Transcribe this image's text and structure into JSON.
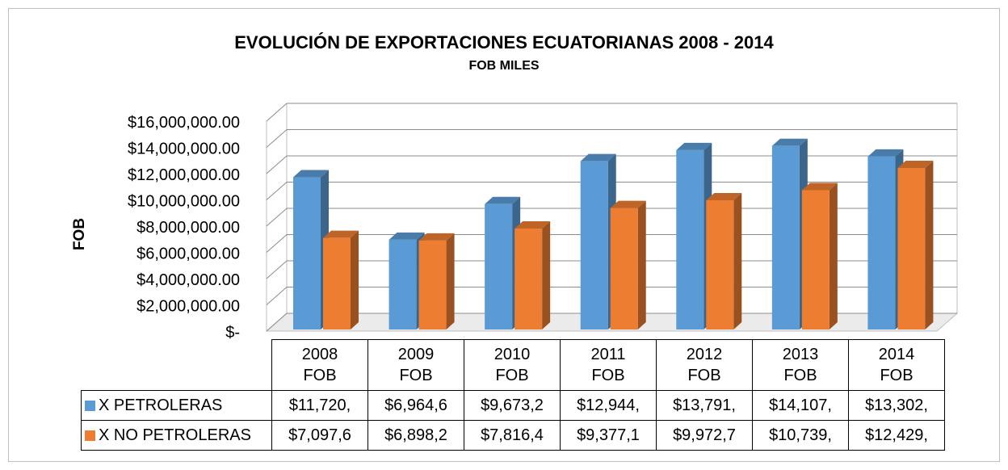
{
  "chart_data": {
    "type": "bar3d",
    "title": "EVOLUCIÓN DE EXPORTACIONES ECUATORIANAS 2008 - 2014",
    "subtitle": "FOB MILES",
    "y_label": "FOB",
    "categories": [
      "2008\nFOB",
      "2009\nFOB",
      "2010\nFOB",
      "2011\nFOB",
      "2012\nFOB",
      "2013\nFOB",
      "2014\nFOB"
    ],
    "series": [
      {
        "name": "X PETROLERAS",
        "color": "#5b9bd5",
        "values": [
          11720000,
          6964600,
          9673200,
          12944000,
          13791000,
          14107000,
          13302000
        ],
        "value_labels": [
          "$11,720,",
          "$6,964,6",
          "$9,673,2",
          "$12,944,",
          "$13,791,",
          "$14,107,",
          "$13,302,"
        ]
      },
      {
        "name": "X NO PETROLERAS",
        "color": "#ed7d31",
        "values": [
          7097600,
          6898200,
          7816400,
          9377100,
          9972700,
          10739000,
          12429000
        ],
        "value_labels": [
          "$7,097,6",
          "$6,898,2",
          "$7,816,4",
          "$9,377,1",
          "$9,972,7",
          "$10,739,",
          "$12,429,"
        ]
      }
    ],
    "ylim": [
      0,
      16000000
    ],
    "yticks": [
      {
        "value": 0,
        "label": "$-"
      },
      {
        "value": 2000000,
        "label": "$2,000,000.00"
      },
      {
        "value": 4000000,
        "label": "$4,000,000.00"
      },
      {
        "value": 6000000,
        "label": "$6,000,000.00"
      },
      {
        "value": 8000000,
        "label": "$8,000,000.00"
      },
      {
        "value": 10000000,
        "label": "$10,000,000.00"
      },
      {
        "value": 12000000,
        "label": "$12,000,000.00"
      },
      {
        "value": 14000000,
        "label": "$14,000,000.00"
      },
      {
        "value": 16000000,
        "label": "$16,000,000.00"
      }
    ],
    "grid": true
  }
}
